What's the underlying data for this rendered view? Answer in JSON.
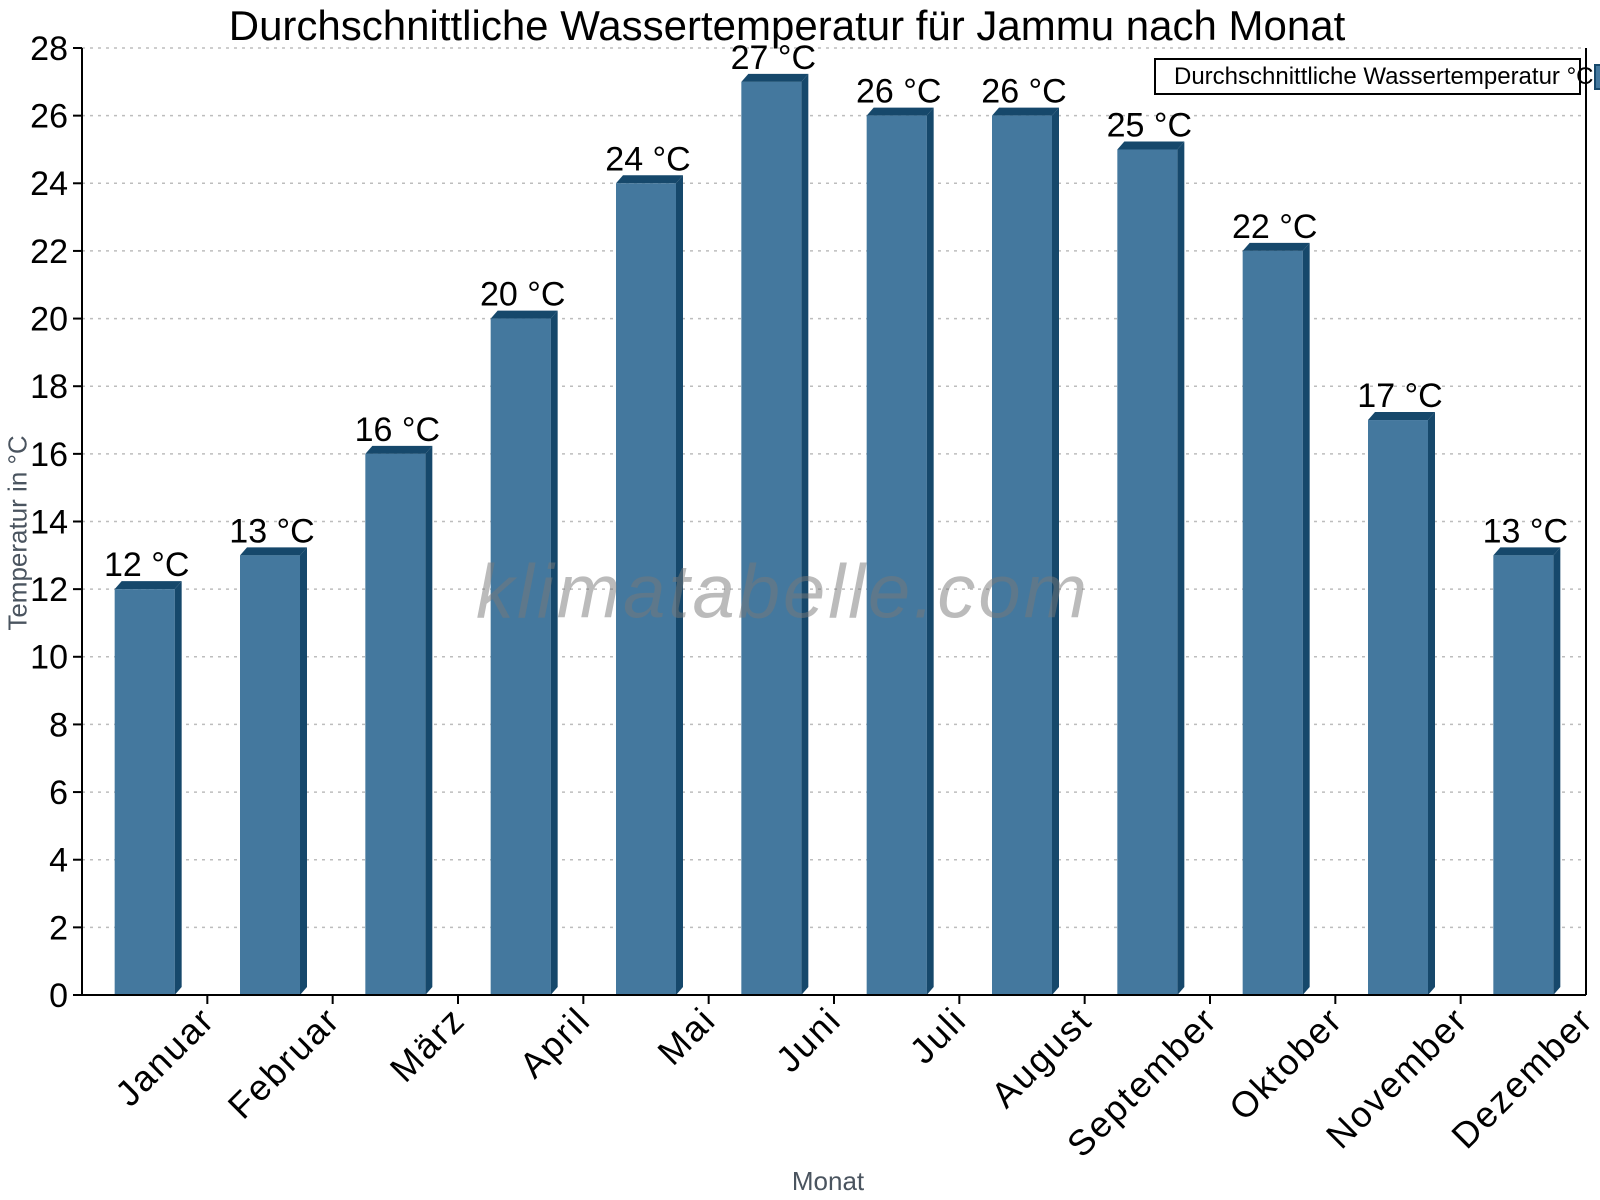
{
  "watermark": "klimatabelle.com",
  "chart_data": {
    "type": "bar",
    "title": "Durchschnittliche Wassertemperatur für Jammu nach Monat",
    "xlabel": "Monat",
    "ylabel": "Temperatur in °C",
    "legend": "Durchschnittliche Wassertemperatur °C",
    "legend_position": "top-right",
    "categories": [
      "Januar",
      "Februar",
      "März",
      "April",
      "Mai",
      "Juni",
      "Juli",
      "August",
      "September",
      "Oktober",
      "November",
      "Dezember"
    ],
    "values": [
      12,
      13,
      16,
      20,
      24,
      27,
      26,
      26,
      25,
      22,
      17,
      13
    ],
    "bar_labels": [
      "12 °C",
      "13 °C",
      "16 °C",
      "20 °C",
      "24 °C",
      "27 °C",
      "26 °C",
      "26 °C",
      "25 °C",
      "22 °C",
      "17 °C",
      "13 °C"
    ],
    "ylim": [
      0,
      28
    ],
    "ytick_step": 2,
    "grid": "dotted-horizontal",
    "x_tick_label_rotation": -45,
    "colors": {
      "bar_face": "#44789E",
      "bar_side": "#16486B",
      "grid": "#bdbdbd",
      "axis": "#000000",
      "axis_title_gray": "#4a545f",
      "watermark_gray": "#8a8a8a",
      "background": "#ffffff"
    }
  }
}
